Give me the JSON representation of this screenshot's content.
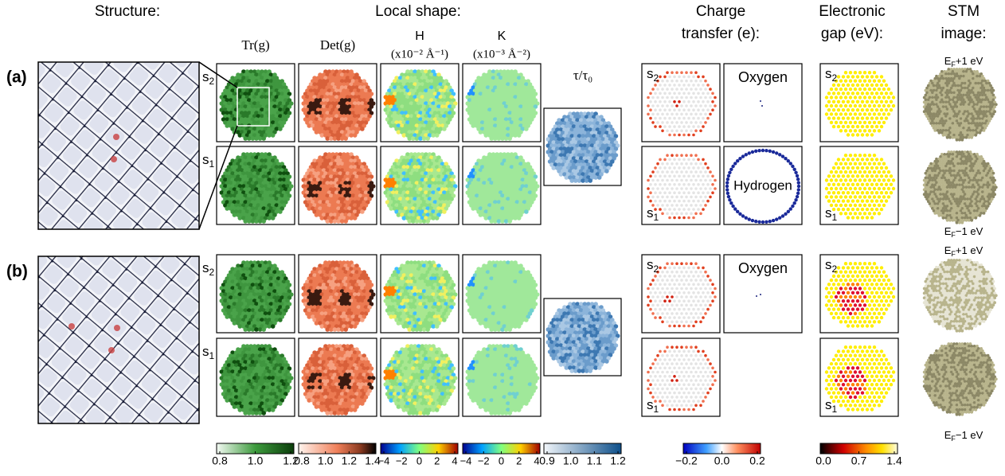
{
  "headers": {
    "structure": "Structure:",
    "local_shape": "Local shape:",
    "charge_transfer": [
      "Charge",
      "transfer (e):"
    ],
    "electronic_gap": [
      "Electronic",
      "gap (eV):"
    ],
    "stm": [
      "STM",
      "image:"
    ]
  },
  "local_shape_columns": [
    {
      "name": "Tr(g)"
    },
    {
      "name": "Det(g)"
    },
    {
      "name": "H",
      "unit": "(x10⁻² Å⁻¹)"
    },
    {
      "name": "K",
      "unit": "(x10⁻³ Å⁻²)"
    },
    {
      "name": "τ/τ₀"
    }
  ],
  "panel_labels": [
    "(a)",
    "(b)"
  ],
  "sheets": [
    {
      "letter": "s",
      "index": "2"
    },
    {
      "letter": "s",
      "index": "1"
    }
  ],
  "species": [
    "Oxygen",
    "Hydrogen",
    "Oxygen"
  ],
  "stm_labels": [
    {
      "base": "E",
      "sub": "F",
      "rest": "+1 eV"
    },
    {
      "base": "E",
      "sub": "F",
      "rest": "−1 eV"
    },
    {
      "base": "E",
      "sub": "F",
      "rest": "+1 eV"
    },
    {
      "base": "E",
      "sub": "F",
      "rest": "−1 eV"
    }
  ],
  "colorbars": [
    {
      "ticks": [
        "0.8",
        "1.0",
        "1.2"
      ]
    },
    {
      "ticks": [
        "0.8",
        "1.0",
        "1.2",
        "1.4"
      ]
    },
    {
      "ticks": [
        "−4",
        "−2",
        "0",
        "2",
        "4"
      ]
    },
    {
      "ticks": [
        "−4",
        "−2",
        "0",
        "2",
        "4"
      ]
    },
    {
      "ticks": [
        "0.9",
        "1.0",
        "1.1",
        "1.2"
      ]
    },
    {
      "ticks": [
        "−0.2",
        "0.0",
        "0.2"
      ]
    },
    {
      "ticks": [
        "0.0",
        "0.7",
        "1.4"
      ]
    }
  ]
}
